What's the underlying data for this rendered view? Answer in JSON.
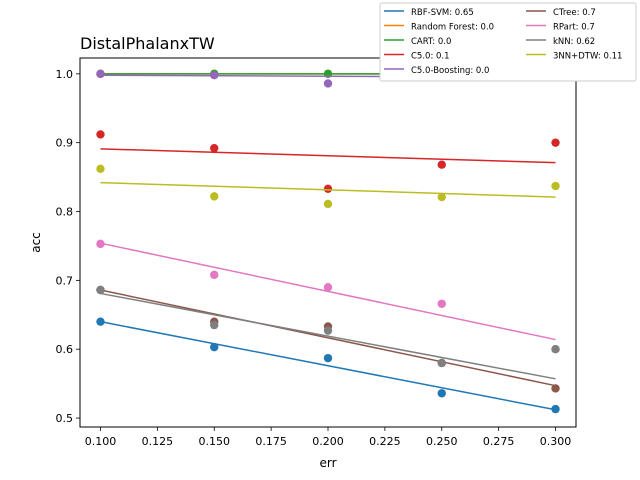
{
  "chart_data": {
    "type": "scatter",
    "title": "DistalPhalanxTW",
    "xlabel": "err",
    "ylabel": "acc",
    "xlim": [
      0.091,
      0.309
    ],
    "ylim": [
      0.487,
      1.023
    ],
    "xticks": [
      "0.100",
      "0.125",
      "0.150",
      "0.175",
      "0.200",
      "0.225",
      "0.250",
      "0.275",
      "0.300"
    ],
    "xtick_values": [
      0.1,
      0.125,
      0.15,
      0.175,
      0.2,
      0.225,
      0.25,
      0.275,
      0.3
    ],
    "yticks": [
      "0.5",
      "0.6",
      "0.7",
      "0.8",
      "0.9",
      "1.0"
    ],
    "ytick_values": [
      0.5,
      0.6,
      0.7,
      0.8,
      0.9,
      1.0
    ],
    "grid": false,
    "legend_position": "top-right",
    "x": [
      0.1,
      0.15,
      0.2,
      0.25,
      0.3
    ],
    "series": [
      {
        "label": "RBF-SVM: 0.65",
        "color": "#1f77b4",
        "values": [
          0.64,
          0.603,
          0.587,
          0.536,
          0.513
        ],
        "fit": [
          0.64,
          0.512
        ]
      },
      {
        "label": "Random Forest: 0.0",
        "color": "#ff7f0e",
        "values": [
          1.0,
          1.0,
          1.0,
          1.0,
          1.0
        ],
        "fit": [
          1.0,
          1.0
        ]
      },
      {
        "label": "CART: 0.0",
        "color": "#2ca02c",
        "values": [
          1.0,
          1.0,
          1.0,
          1.0,
          1.0
        ],
        "fit": [
          1.0,
          1.0
        ]
      },
      {
        "label": "C5.0: 0.1",
        "color": "#d62728",
        "values": [
          0.912,
          0.892,
          0.833,
          0.868,
          0.9
        ],
        "fit": [
          0.891,
          0.871
        ]
      },
      {
        "label": "C5.0-Boosting: 0.0",
        "color": "#9467bd",
        "values": [
          1.0,
          0.998,
          0.986,
          0.995,
          1.0
        ],
        "fit": [
          0.998,
          0.995
        ]
      },
      {
        "label": "CTree: 0.7",
        "color": "#8c564b",
        "values": [
          0.686,
          0.64,
          0.633,
          0.58,
          0.543
        ],
        "fit": [
          0.686,
          0.547
        ]
      },
      {
        "label": "RPart: 0.7",
        "color": "#e377c2",
        "values": [
          0.753,
          0.708,
          0.69,
          0.666,
          0.6
        ],
        "fit": [
          0.754,
          0.614
        ]
      },
      {
        "label": "kNN: 0.62",
        "color": "#7f7f7f",
        "values": [
          0.686,
          0.635,
          0.627,
          0.58,
          0.6
        ],
        "fit": [
          0.681,
          0.557
        ]
      },
      {
        "label": "3NN+DTW: 0.11",
        "color": "#bcbd22",
        "values": [
          0.862,
          0.822,
          0.811,
          0.821,
          0.837
        ],
        "fit": [
          0.842,
          0.821
        ]
      }
    ]
  }
}
